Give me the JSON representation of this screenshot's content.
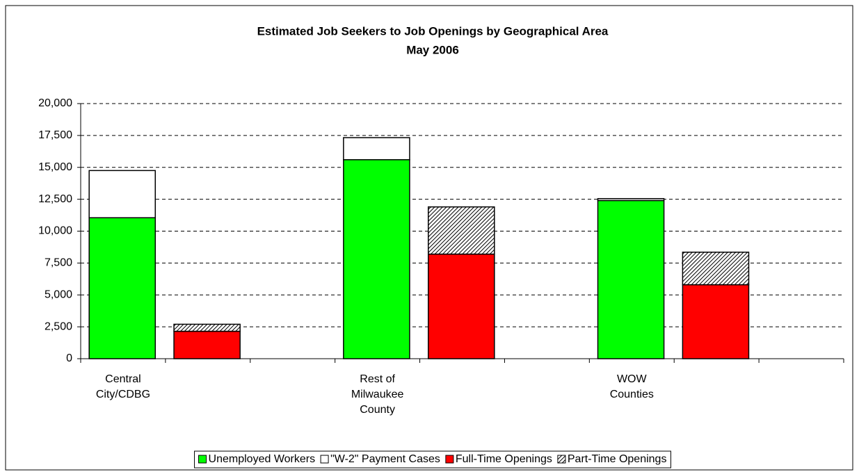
{
  "chart_data": {
    "type": "stacked-bar",
    "title": "Estimated Job Seekers to Job Openings by Geographical Area",
    "subtitle": "May 2006",
    "categories": [
      "Central City/CDBG",
      null,
      null,
      "Rest of Milwaukee County",
      null,
      null,
      "WOW Counties",
      null,
      null
    ],
    "series": [
      {
        "name": "Unemployed Workers",
        "color": "#00ff00",
        "values": [
          11050,
          null,
          null,
          15600,
          null,
          null,
          12400,
          null,
          null
        ]
      },
      {
        "name": "\"W-2\" Payment Cases",
        "color": "#ffffff",
        "values": [
          3700,
          null,
          null,
          1730,
          null,
          null,
          150,
          null,
          null
        ]
      },
      {
        "name": "Full-Time Openings",
        "color": "#ff0000",
        "values": [
          null,
          2150,
          null,
          null,
          8200,
          null,
          null,
          5800,
          null
        ]
      },
      {
        "name": "Part-Time Openings",
        "color": "hatch",
        "values": [
          null,
          550,
          null,
          null,
          3700,
          null,
          null,
          2550,
          null
        ]
      }
    ],
    "ylim": [
      0,
      20000
    ],
    "yticks": [
      {
        "value": 0,
        "label": "0"
      },
      {
        "value": 2500,
        "label": "2,500"
      },
      {
        "value": 5000,
        "label": "5,000"
      },
      {
        "value": 7500,
        "label": "7,500"
      },
      {
        "value": 10000,
        "label": "10,000"
      },
      {
        "value": 12500,
        "label": "12,500"
      },
      {
        "value": 15000,
        "label": "15,000"
      },
      {
        "value": 17500,
        "label": "17,500"
      },
      {
        "value": 20000,
        "label": "20,000"
      }
    ],
    "grid": true,
    "legend": "bottom"
  }
}
